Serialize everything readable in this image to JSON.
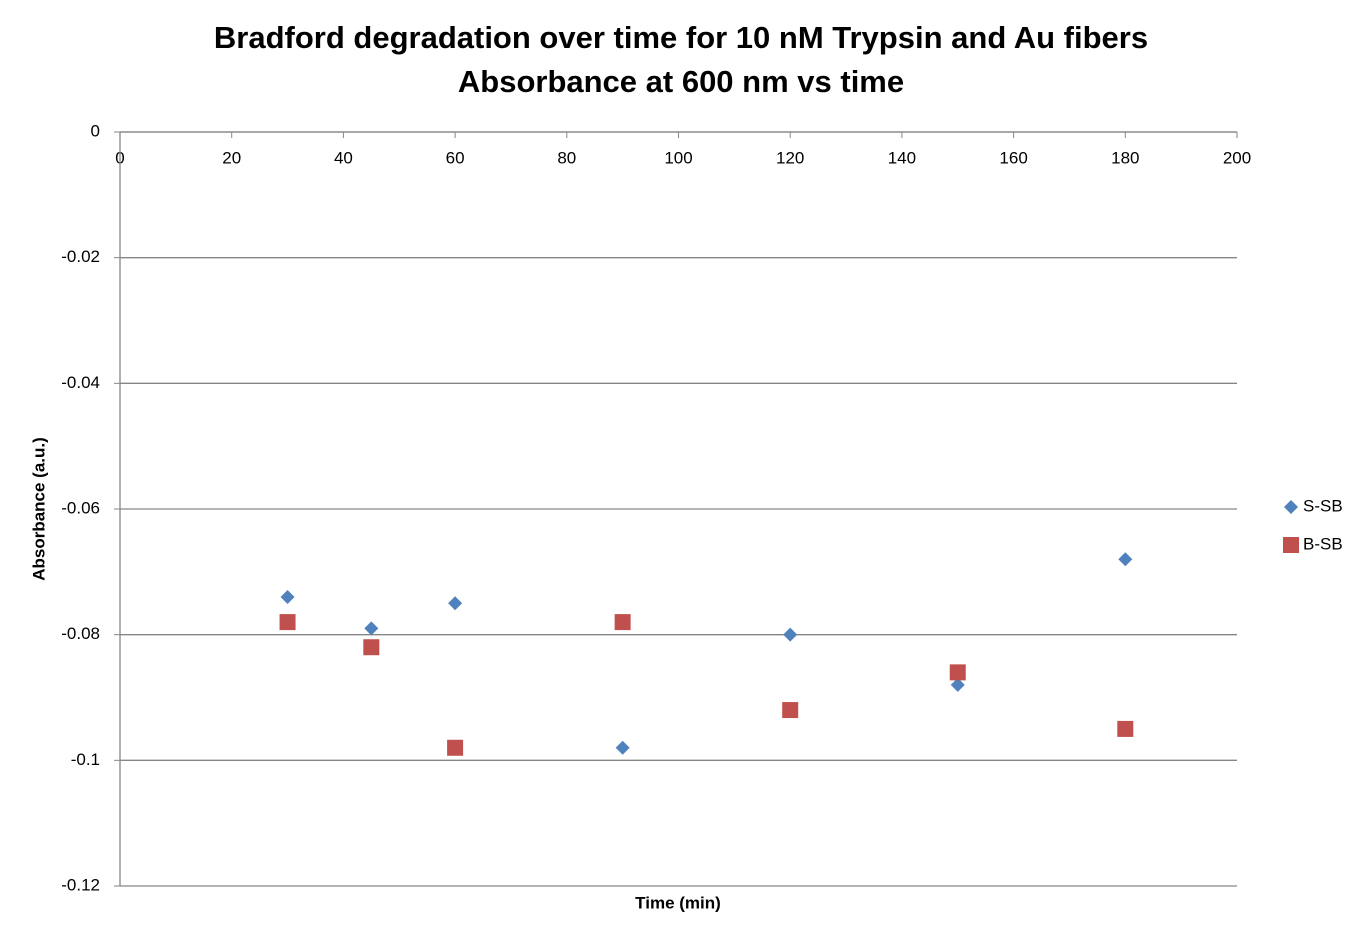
{
  "chart_data": {
    "type": "scatter",
    "title": "Bradford degradation over time for 10 nM Trypsin and Au fibers",
    "subtitle": "Absorbance at 600 nm vs time",
    "x_label": "Time (min)",
    "y_label": "Absorbance (a.u.)",
    "x": [
      30,
      45,
      60,
      90,
      120,
      150,
      180
    ],
    "series": [
      {
        "name": "S-SB",
        "color": "#4f81bd",
        "marker": "diamond",
        "values": [
          -0.074,
          -0.079,
          -0.075,
          -0.098,
          -0.08,
          -0.088,
          -0.068
        ]
      },
      {
        "name": "B-SB",
        "color": "#c0504d",
        "marker": "square",
        "values": [
          -0.078,
          -0.082,
          -0.098,
          -0.078,
          -0.092,
          -0.086,
          -0.095
        ]
      }
    ],
    "xlim": [
      0,
      200
    ],
    "xticks": [
      0,
      20,
      40,
      60,
      80,
      100,
      120,
      140,
      160,
      180,
      200
    ],
    "ylim": [
      -0.12,
      0
    ],
    "yticks": [
      0,
      -0.02,
      -0.04,
      -0.06,
      -0.08,
      -0.1,
      -0.12
    ],
    "grid": true,
    "legend": "right"
  }
}
